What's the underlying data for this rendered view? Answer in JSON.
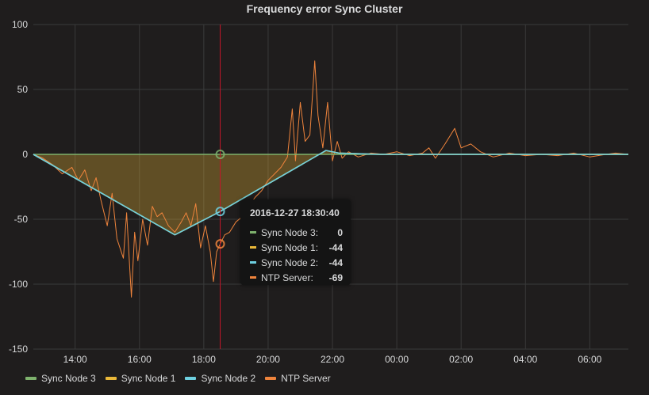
{
  "chart_data": {
    "type": "line",
    "title": "Frequency error Sync Cluster",
    "xlabel": "",
    "ylabel": "",
    "ylim": [
      -150,
      100
    ],
    "x_tick_labels": [
      "14:00",
      "16:00",
      "18:00",
      "20:00",
      "22:00",
      "00:00",
      "02:00",
      "04:00",
      "06:00"
    ],
    "x_tick_hours": [
      14,
      16,
      18,
      20,
      22,
      24,
      26,
      28,
      30
    ],
    "x_range_hours": [
      12.7,
      31.2
    ],
    "y_ticks": [
      100,
      50,
      0,
      -50,
      -100,
      -150
    ],
    "grid": true,
    "legend_position": "bottom-left",
    "crosshair_time": "2016-12-27 18:30:40",
    "crosshair_hour": 18.51,
    "series": [
      {
        "name": "Sync Node 3",
        "color": "#7eb26d",
        "points": [
          [
            12.7,
            0
          ],
          [
            31.2,
            0
          ]
        ]
      },
      {
        "name": "Sync Node 1",
        "color": "#eab839",
        "fill": true,
        "points": [
          [
            12.7,
            0
          ],
          [
            17.1,
            -62
          ],
          [
            18.51,
            -44
          ],
          [
            21.8,
            3
          ],
          [
            22.2,
            1
          ],
          [
            23.5,
            0
          ],
          [
            31.2,
            0
          ]
        ]
      },
      {
        "name": "Sync Node 2",
        "color": "#6ed0e0",
        "points": [
          [
            12.7,
            0
          ],
          [
            17.1,
            -62
          ],
          [
            18.51,
            -44
          ],
          [
            21.8,
            3
          ],
          [
            22.2,
            1
          ],
          [
            23.5,
            0
          ],
          [
            31.2,
            0
          ]
        ]
      },
      {
        "name": "NTP Server",
        "color": "#ef843c",
        "points": [
          [
            12.7,
            0
          ],
          [
            13.0,
            -3
          ],
          [
            13.3,
            -8
          ],
          [
            13.6,
            -15
          ],
          [
            13.9,
            -10
          ],
          [
            14.1,
            -20
          ],
          [
            14.3,
            -12
          ],
          [
            14.5,
            -28
          ],
          [
            14.65,
            -18
          ],
          [
            14.8,
            -35
          ],
          [
            15.0,
            -55
          ],
          [
            15.15,
            -30
          ],
          [
            15.3,
            -65
          ],
          [
            15.5,
            -80
          ],
          [
            15.6,
            -45
          ],
          [
            15.75,
            -110
          ],
          [
            15.85,
            -60
          ],
          [
            15.95,
            -82
          ],
          [
            16.1,
            -50
          ],
          [
            16.25,
            -70
          ],
          [
            16.4,
            -40
          ],
          [
            16.55,
            -48
          ],
          [
            16.7,
            -45
          ],
          [
            16.9,
            -55
          ],
          [
            17.1,
            -60
          ],
          [
            17.3,
            -52
          ],
          [
            17.45,
            -45
          ],
          [
            17.6,
            -55
          ],
          [
            17.75,
            -38
          ],
          [
            17.9,
            -72
          ],
          [
            18.05,
            -55
          ],
          [
            18.2,
            -75
          ],
          [
            18.3,
            -98
          ],
          [
            18.4,
            -75
          ],
          [
            18.51,
            -69
          ],
          [
            18.65,
            -62
          ],
          [
            18.8,
            -60
          ],
          [
            19.0,
            -52
          ],
          [
            19.2,
            -48
          ],
          [
            19.4,
            -40
          ],
          [
            19.6,
            -33
          ],
          [
            19.8,
            -28
          ],
          [
            20.0,
            -20
          ],
          [
            20.2,
            -15
          ],
          [
            20.4,
            -10
          ],
          [
            20.6,
            -2
          ],
          [
            20.75,
            35
          ],
          [
            20.85,
            -5
          ],
          [
            21.0,
            40
          ],
          [
            21.15,
            10
          ],
          [
            21.3,
            15
          ],
          [
            21.45,
            72
          ],
          [
            21.55,
            30
          ],
          [
            21.7,
            5
          ],
          [
            21.85,
            40
          ],
          [
            22.0,
            -5
          ],
          [
            22.15,
            10
          ],
          [
            22.3,
            -3
          ],
          [
            22.5,
            2
          ],
          [
            22.8,
            -2
          ],
          [
            23.2,
            1
          ],
          [
            23.6,
            0
          ],
          [
            24.0,
            2
          ],
          [
            24.4,
            -1
          ],
          [
            24.8,
            1
          ],
          [
            25.0,
            5
          ],
          [
            25.2,
            -3
          ],
          [
            25.5,
            8
          ],
          [
            25.8,
            20
          ],
          [
            26.0,
            5
          ],
          [
            26.3,
            8
          ],
          [
            26.6,
            2
          ],
          [
            27.0,
            -2
          ],
          [
            27.5,
            1
          ],
          [
            28.0,
            -1
          ],
          [
            28.5,
            0
          ],
          [
            29.0,
            -1
          ],
          [
            29.5,
            1
          ],
          [
            30.0,
            -2
          ],
          [
            30.5,
            0
          ],
          [
            30.8,
            1
          ],
          [
            31.2,
            0
          ]
        ]
      }
    ],
    "tooltip_values": [
      {
        "name": "Sync Node 3:",
        "value": "0",
        "color": "#7eb26d"
      },
      {
        "name": "Sync Node 1:",
        "value": "-44",
        "color": "#eab839"
      },
      {
        "name": "Sync Node 2:",
        "value": "-44",
        "color": "#6ed0e0"
      },
      {
        "name": "NTP Server:",
        "value": "-69",
        "color": "#ef843c"
      }
    ],
    "crosshair_points": [
      {
        "value": 0,
        "color": "#7eb26d"
      },
      {
        "value": -44,
        "color": "#6ed0e0"
      },
      {
        "value": -69,
        "color": "#ef843c"
      }
    ]
  },
  "legend": [
    {
      "label": "Sync Node 3",
      "color": "#7eb26d"
    },
    {
      "label": "Sync Node 1",
      "color": "#eab839"
    },
    {
      "label": "Sync Node 2",
      "color": "#6ed0e0"
    },
    {
      "label": "NTP Server",
      "color": "#ef843c"
    }
  ],
  "colors": {
    "background": "#1f1d1d",
    "grid": "#3a3a3a",
    "crosshair": "#c4162a"
  }
}
